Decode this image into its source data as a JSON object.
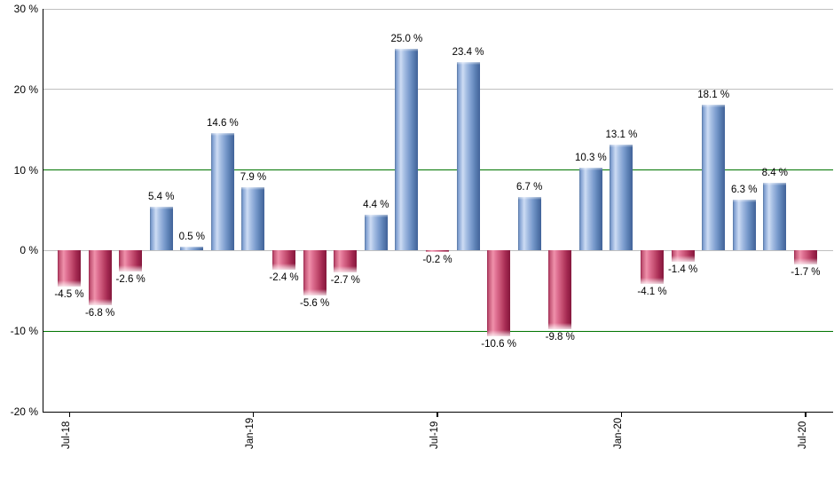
{
  "chart_data": {
    "type": "bar",
    "title": "",
    "ylabel": "",
    "xlabel": "",
    "unit": "%",
    "ylim": [
      -20,
      30
    ],
    "grid": true,
    "legend": null,
    "bars": [
      {
        "value": -4.5,
        "label": "-4.5 %"
      },
      {
        "value": -6.8,
        "label": "-6.8 %"
      },
      {
        "value": -2.6,
        "label": "-2.6 %"
      },
      {
        "value": 5.4,
        "label": "5.4 %"
      },
      {
        "value": 0.5,
        "label": "0.5 %"
      },
      {
        "value": 14.6,
        "label": "14.6 %"
      },
      {
        "value": 7.9,
        "label": "7.9 %"
      },
      {
        "value": -2.4,
        "label": "-2.4 %"
      },
      {
        "value": -5.6,
        "label": "-5.6 %"
      },
      {
        "value": -2.7,
        "label": "-2.7 %"
      },
      {
        "value": 4.4,
        "label": "4.4 %"
      },
      {
        "value": 25.0,
        "label": "25.0 %"
      },
      {
        "value": -0.2,
        "label": "-0.2 %"
      },
      {
        "value": 23.4,
        "label": "23.4 %"
      },
      {
        "value": -10.6,
        "label": "-10.6 %"
      },
      {
        "value": 6.7,
        "label": "6.7 %"
      },
      {
        "value": -9.8,
        "label": "-9.8 %"
      },
      {
        "value": 10.3,
        "label": "10.3 %"
      },
      {
        "value": 13.1,
        "label": "13.1 %"
      },
      {
        "value": -4.1,
        "label": "-4.1 %"
      },
      {
        "value": -1.4,
        "label": "-1.4 %"
      },
      {
        "value": 18.1,
        "label": "18.1 %"
      },
      {
        "value": 6.3,
        "label": "6.3 %"
      },
      {
        "value": 8.4,
        "label": "8.4 %"
      },
      {
        "value": -1.7,
        "label": "-1.7 %"
      }
    ],
    "x_ticks": [
      {
        "label": "Jul-18",
        "index": 0
      },
      {
        "label": "Jan-19",
        "index": 6
      },
      {
        "label": "Jul-19",
        "index": 12
      },
      {
        "label": "Jan-20",
        "index": 18
      },
      {
        "label": "Jul-20",
        "index": 24
      }
    ],
    "y_ticks": [
      {
        "label": "30 %",
        "value": 30,
        "line": "gray"
      },
      {
        "label": "20 %",
        "value": 20,
        "line": "gray"
      },
      {
        "label": "10 %",
        "value": 10,
        "line": "green"
      },
      {
        "label": "0 %",
        "value": 0,
        "line": "gray"
      },
      {
        "label": "-10 %",
        "value": -10,
        "line": "green"
      },
      {
        "label": "-20 %",
        "value": -20,
        "line": "axis"
      }
    ],
    "colors": {
      "positive_bar": "#7b9cce",
      "negative_bar": "#c14a6d",
      "grid_gray": "#c0c0c0",
      "grid_green": "#007500",
      "axis": "#000000",
      "background": "#ffffff"
    }
  }
}
